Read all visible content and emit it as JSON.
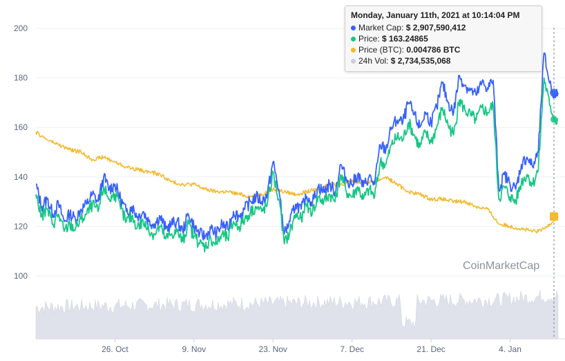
{
  "chart_data": {
    "type": "line",
    "y_axis": {
      "ticks": [
        "200",
        "180",
        "160",
        "140",
        "120",
        "100"
      ],
      "range": [
        86,
        204
      ]
    },
    "x_axis": {
      "ticks": [
        "26. Oct",
        "9. Nov",
        "23. Nov",
        "7. Dec",
        "21. Dec",
        "4. Jan"
      ],
      "tick_positions_day": [
        14,
        28,
        42,
        56,
        70,
        84
      ],
      "range_day": [
        0,
        92.5
      ],
      "start_date": "2020-10-12"
    },
    "series": [
      {
        "name": "Market Cap",
        "color": "#3861fb",
        "points": [
          [
            0,
            137
          ],
          [
            1,
            128
          ],
          [
            2,
            131
          ],
          [
            3,
            125
          ],
          [
            4,
            129
          ],
          [
            5,
            122
          ],
          [
            6,
            125
          ],
          [
            7,
            123
          ],
          [
            8,
            127
          ],
          [
            9,
            129
          ],
          [
            10,
            133
          ],
          [
            11,
            130
          ],
          [
            12,
            140
          ],
          [
            13,
            135
          ],
          [
            14,
            137
          ],
          [
            15,
            131
          ],
          [
            16,
            126
          ],
          [
            17,
            128
          ],
          [
            18,
            124
          ],
          [
            19,
            126
          ],
          [
            20,
            122
          ],
          [
            21,
            121
          ],
          [
            22,
            124
          ],
          [
            23,
            119
          ],
          [
            24,
            121
          ],
          [
            25,
            122
          ],
          [
            26,
            118
          ],
          [
            27,
            125
          ],
          [
            28,
            120
          ],
          [
            29,
            117
          ],
          [
            30,
            116
          ],
          [
            31,
            119
          ],
          [
            32,
            117
          ],
          [
            33,
            121
          ],
          [
            34,
            119
          ],
          [
            35,
            126
          ],
          [
            36,
            124
          ],
          [
            37,
            127
          ],
          [
            38,
            130
          ],
          [
            39,
            132
          ],
          [
            40,
            130
          ],
          [
            41,
            133
          ],
          [
            42,
            146
          ],
          [
            43,
            135
          ],
          [
            44,
            117
          ],
          [
            45,
            122
          ],
          [
            46,
            129
          ],
          [
            47,
            127
          ],
          [
            48,
            132
          ],
          [
            49,
            130
          ],
          [
            50,
            136
          ],
          [
            51,
            134
          ],
          [
            52,
            137
          ],
          [
            53,
            134
          ],
          [
            54,
            145
          ],
          [
            55,
            139
          ],
          [
            56,
            137
          ],
          [
            57,
            141
          ],
          [
            58,
            136
          ],
          [
            59,
            140
          ],
          [
            60,
            137
          ],
          [
            61,
            153
          ],
          [
            62,
            151
          ],
          [
            63,
            160
          ],
          [
            64,
            163
          ],
          [
            65,
            162
          ],
          [
            66,
            170
          ],
          [
            67,
            165
          ],
          [
            68,
            160
          ],
          [
            69,
            166
          ],
          [
            70,
            162
          ],
          [
            71,
            168
          ],
          [
            72,
            178
          ],
          [
            73,
            170
          ],
          [
            74,
            166
          ],
          [
            75,
            181
          ],
          [
            76,
            177
          ],
          [
            77,
            175
          ],
          [
            78,
            173
          ],
          [
            79,
            178
          ],
          [
            80,
            176
          ],
          [
            81,
            179
          ],
          [
            82,
            135
          ],
          [
            83,
            141
          ],
          [
            84,
            137
          ],
          [
            85,
            135
          ],
          [
            86,
            145
          ],
          [
            87,
            148
          ],
          [
            88,
            144
          ],
          [
            89,
            150
          ],
          [
            90,
            190
          ],
          [
            91,
            178
          ],
          [
            92,
            172
          ],
          [
            92.5,
            174
          ]
        ]
      },
      {
        "name": "Price",
        "color": "#16c784",
        "points": [
          [
            0,
            133
          ],
          [
            1,
            124
          ],
          [
            2,
            127
          ],
          [
            3,
            121
          ],
          [
            4,
            125
          ],
          [
            5,
            118
          ],
          [
            6,
            121
          ],
          [
            7,
            119
          ],
          [
            8,
            123
          ],
          [
            9,
            125
          ],
          [
            10,
            129
          ],
          [
            11,
            126
          ],
          [
            12,
            136
          ],
          [
            13,
            131
          ],
          [
            14,
            133
          ],
          [
            15,
            127
          ],
          [
            16,
            122
          ],
          [
            17,
            124
          ],
          [
            18,
            120
          ],
          [
            19,
            122
          ],
          [
            20,
            118
          ],
          [
            21,
            117
          ],
          [
            22,
            120
          ],
          [
            23,
            115
          ],
          [
            24,
            117
          ],
          [
            25,
            118
          ],
          [
            26,
            114
          ],
          [
            27,
            121
          ],
          [
            28,
            116
          ],
          [
            29,
            113
          ],
          [
            30,
            112
          ],
          [
            31,
            115
          ],
          [
            32,
            113
          ],
          [
            33,
            117
          ],
          [
            34,
            115
          ],
          [
            35,
            122
          ],
          [
            36,
            120
          ],
          [
            37,
            123
          ],
          [
            38,
            126
          ],
          [
            39,
            128
          ],
          [
            40,
            126
          ],
          [
            41,
            129
          ],
          [
            42,
            142
          ],
          [
            43,
            131
          ],
          [
            44,
            113
          ],
          [
            45,
            118
          ],
          [
            46,
            125
          ],
          [
            47,
            123
          ],
          [
            48,
            128
          ],
          [
            49,
            126
          ],
          [
            50,
            132
          ],
          [
            51,
            130
          ],
          [
            52,
            133
          ],
          [
            53,
            130
          ],
          [
            54,
            141
          ],
          [
            55,
            134
          ],
          [
            56,
            132
          ],
          [
            57,
            136
          ],
          [
            58,
            131
          ],
          [
            59,
            135
          ],
          [
            60,
            132
          ],
          [
            61,
            146
          ],
          [
            62,
            145
          ],
          [
            63,
            153
          ],
          [
            64,
            156
          ],
          [
            65,
            155
          ],
          [
            66,
            162
          ],
          [
            67,
            157
          ],
          [
            68,
            152
          ],
          [
            69,
            158
          ],
          [
            70,
            154
          ],
          [
            71,
            160
          ],
          [
            72,
            168
          ],
          [
            73,
            161
          ],
          [
            74,
            157
          ],
          [
            75,
            171
          ],
          [
            76,
            167
          ],
          [
            77,
            165
          ],
          [
            78,
            163
          ],
          [
            79,
            168
          ],
          [
            80,
            166
          ],
          [
            81,
            169
          ],
          [
            82,
            131
          ],
          [
            83,
            136
          ],
          [
            84,
            132
          ],
          [
            85,
            130
          ],
          [
            86,
            138
          ],
          [
            87,
            141
          ],
          [
            88,
            137
          ],
          [
            89,
            143
          ],
          [
            90,
            180
          ],
          [
            91,
            169
          ],
          [
            92,
            163
          ],
          [
            92.5,
            163.25
          ]
        ]
      },
      {
        "name": "Price (BTC)",
        "color": "#f3ba2f",
        "points": [
          [
            0,
            158
          ],
          [
            2,
            155
          ],
          [
            4,
            153
          ],
          [
            6,
            151
          ],
          [
            8,
            150
          ],
          [
            10,
            147
          ],
          [
            12,
            148
          ],
          [
            14,
            146
          ],
          [
            16,
            144
          ],
          [
            18,
            143
          ],
          [
            20,
            142
          ],
          [
            22,
            141
          ],
          [
            24,
            138
          ],
          [
            26,
            137
          ],
          [
            28,
            137
          ],
          [
            30,
            135
          ],
          [
            32,
            134
          ],
          [
            34,
            134
          ],
          [
            36,
            133
          ],
          [
            38,
            132
          ],
          [
            40,
            133
          ],
          [
            42,
            135
          ],
          [
            44,
            134
          ],
          [
            46,
            133
          ],
          [
            48,
            134
          ],
          [
            50,
            135
          ],
          [
            52,
            137
          ],
          [
            54,
            137
          ],
          [
            56,
            138
          ],
          [
            58,
            138
          ],
          [
            60,
            138
          ],
          [
            62,
            140
          ],
          [
            64,
            137
          ],
          [
            66,
            134
          ],
          [
            68,
            133
          ],
          [
            70,
            131
          ],
          [
            72,
            131
          ],
          [
            74,
            130
          ],
          [
            76,
            130
          ],
          [
            78,
            128
          ],
          [
            80,
            127
          ],
          [
            81,
            124
          ],
          [
            82,
            121
          ],
          [
            84,
            120
          ],
          [
            86,
            119
          ],
          [
            88,
            118
          ],
          [
            89,
            118
          ],
          [
            90,
            119
          ],
          [
            91,
            121
          ],
          [
            92,
            123
          ],
          [
            92.5,
            124
          ]
        ]
      },
      {
        "name": "24h Vol",
        "color": "#d8dce6"
      }
    ]
  },
  "tooltip": {
    "title": "Monday, January 11th, 2021 at 10:14:04 PM",
    "rows": [
      {
        "name": "Market Cap:",
        "value": "$ 2,907,590,412",
        "color": "#3861fb"
      },
      {
        "name": "Price:",
        "value": "$ 163.24865",
        "color": "#16c784"
      },
      {
        "name": "Price (BTC):",
        "value": "0.004786 BTC",
        "color": "#f3ba2f"
      },
      {
        "name": "24h Vol:",
        "value": "$ 2,734,535,068",
        "color": "#c9cede"
      }
    ]
  },
  "watermark": "CoinMarketCap"
}
